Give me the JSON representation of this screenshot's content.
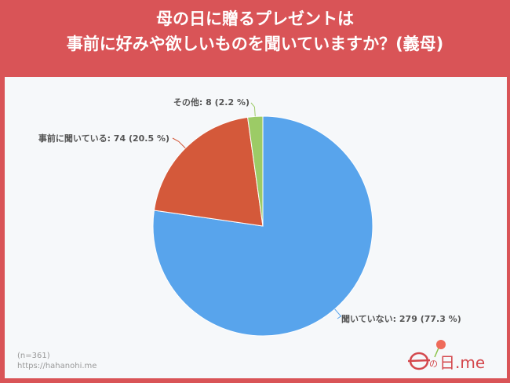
{
  "title": {
    "line1": "母の日に贈るプレゼントは",
    "line2": "事前に好みや欲しいものを聞いていますか？(義母)"
  },
  "chart_data": {
    "type": "pie",
    "start": "top",
    "direction": "clockwise",
    "slices": [
      {
        "label": "聞いていない: 279 (77.3 %)",
        "category": "聞いていない",
        "value": 279,
        "percent": 77.3,
        "color": "#58a4ec"
      },
      {
        "label": "事前に聞いている: 74 (20.5 %)",
        "category": "事前に聞いている",
        "value": 74,
        "percent": 20.5,
        "color": "#d4593a"
      },
      {
        "label": "その他: 8 (2.2 %)",
        "category": "その他",
        "value": 8,
        "percent": 2.2,
        "color": "#9ccb66"
      }
    ]
  },
  "footer": {
    "n": "(n=361)",
    "url": "https://hahanohi.me"
  },
  "logo": {
    "text": "母の日.me"
  }
}
